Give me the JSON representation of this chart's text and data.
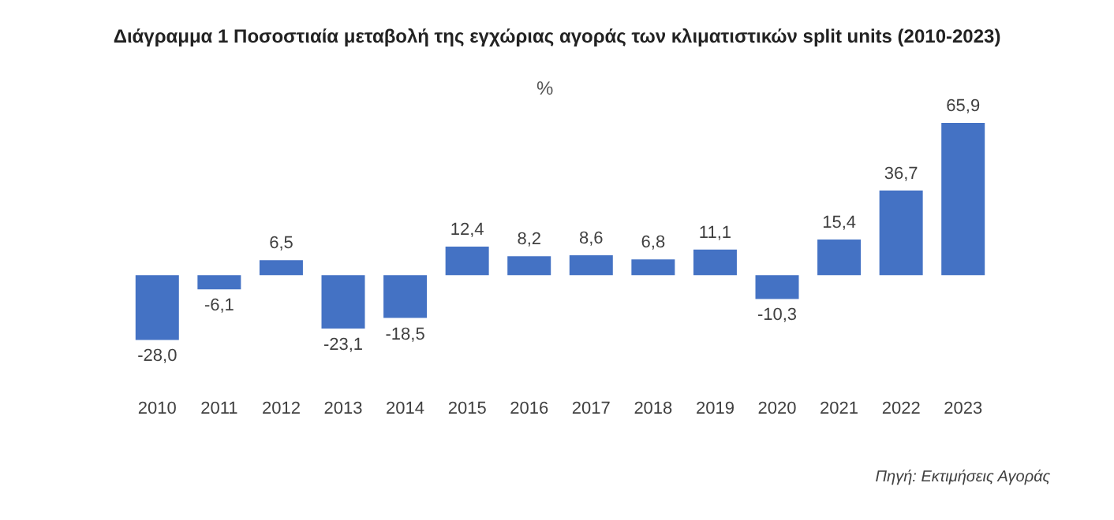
{
  "chart_data": {
    "type": "bar",
    "title": "Διάγραμμα 1 Ποσοστιαία μεταβολή της εγχώριας αγοράς των κλιματιστικών split units (2010-2023)",
    "ylabel": "%",
    "categories": [
      "2010",
      "2011",
      "2012",
      "2013",
      "2014",
      "2015",
      "2016",
      "2017",
      "2018",
      "2019",
      "2020",
      "2021",
      "2022",
      "2023"
    ],
    "values": [
      -28.0,
      -6.1,
      6.5,
      -23.1,
      -18.5,
      12.4,
      8.2,
      8.6,
      6.8,
      11.1,
      -10.3,
      15.4,
      36.7,
      65.9
    ],
    "value_labels": [
      "-28,0",
      "-6,1",
      "6,5",
      "-23,1",
      "-18,5",
      "12,4",
      "8,2",
      "8,6",
      "6,8",
      "11,1",
      "-10,3",
      "15,4",
      "36,7",
      "65,9"
    ],
    "color": "#4472c4",
    "tick_labels": "x",
    "annotations": [
      "Πηγή: Εκτιμήσεις Αγοράς"
    ]
  }
}
